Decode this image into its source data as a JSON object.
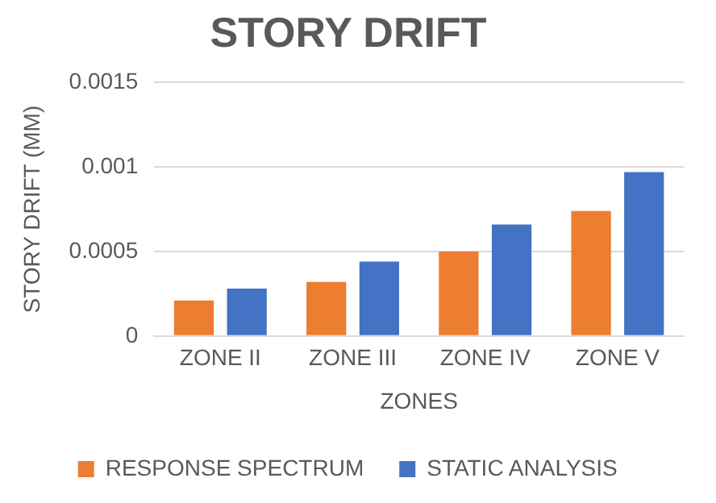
{
  "chart_data": {
    "type": "bar",
    "title": "STORY DRIFT",
    "xlabel": "ZONES",
    "ylabel": "STORY DRIFT (MM)",
    "categories": [
      "ZONE II",
      "ZONE III",
      "ZONE IV",
      "ZONE V"
    ],
    "series": [
      {
        "name": "RESPONSE SPECTRUM",
        "color": "#ed7d31",
        "values": [
          0.00021,
          0.00032,
          0.0005,
          0.00074
        ]
      },
      {
        "name": "STATIC ANALYSIS",
        "color": "#4472c4",
        "values": [
          0.00028,
          0.00044,
          0.00066,
          0.00097
        ]
      }
    ],
    "ylim": [
      0,
      0.0015
    ],
    "yticks": [
      0,
      0.0005,
      0.001,
      0.0015
    ],
    "grid": "y",
    "legend": "bottom"
  }
}
